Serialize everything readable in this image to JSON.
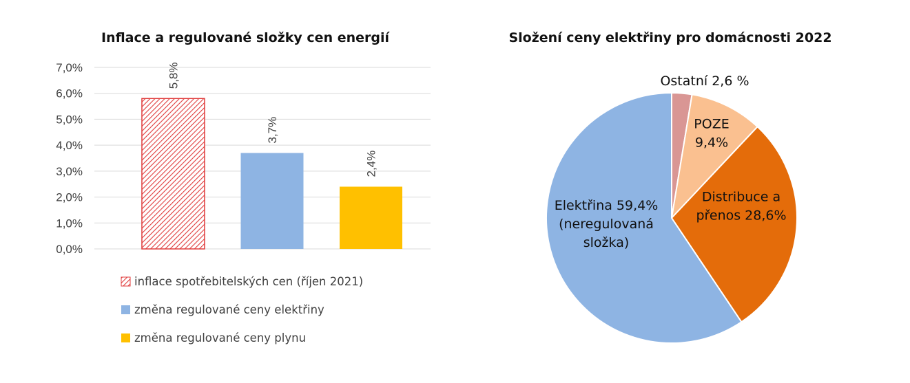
{
  "chart_data": [
    {
      "type": "bar",
      "title": "Inflace a regulované složky cen energií",
      "ylim": [
        0,
        7
      ],
      "yticks": [
        "0,0%",
        "1,0%",
        "2,0%",
        "3,0%",
        "4,0%",
        "5,0%",
        "6,0%",
        "7,0%"
      ],
      "grid": true,
      "legend_position": "bottom",
      "series": [
        {
          "name": "inflace spotřebitelských cen (říjen 2021)",
          "value": 5.8,
          "label": "5,8%",
          "color": "#e03c3c",
          "pattern": "hatched"
        },
        {
          "name": "změna regulované ceny elektřiny",
          "value": 3.7,
          "label": "3,7%",
          "color": "#8eb4e3"
        },
        {
          "name": "změna regulované ceny plynu",
          "value": 2.4,
          "label": "2,4%",
          "color": "#ffc000"
        }
      ]
    },
    {
      "type": "pie",
      "title": "Složení ceny elektřiny pro domácnosti 2022",
      "slices": [
        {
          "value": 2.6,
          "label_lines": [
            "Ostatní 2,6 %"
          ],
          "color": "#d99694"
        },
        {
          "value": 9.4,
          "label_lines": [
            "POZE",
            "9,4%"
          ],
          "color": "#fac090"
        },
        {
          "value": 28.6,
          "label_lines": [
            "Distribuce a",
            "přenos 28,6%"
          ],
          "color": "#e46c0a"
        },
        {
          "value": 59.4,
          "label_lines": [
            "Elektřina 59,4%",
            "(neregulovaná",
            "složka)"
          ],
          "color": "#8eb4e3"
        }
      ]
    }
  ]
}
